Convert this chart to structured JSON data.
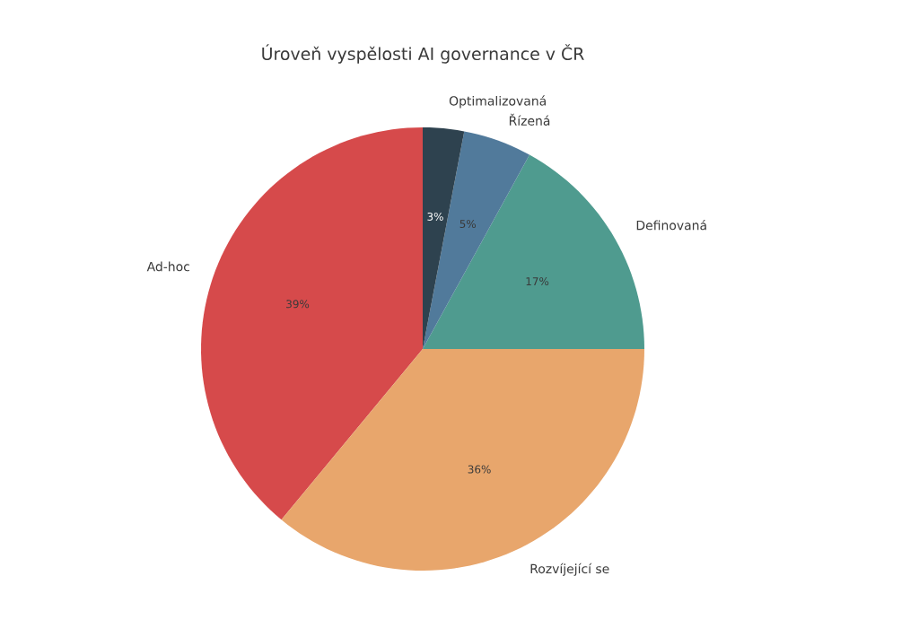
{
  "chart_data": {
    "type": "pie",
    "title": "Úroveň vyspělosti AI governance v ČR",
    "categories": [
      "Ad-hoc",
      "Rozvíjející se",
      "Definovaná",
      "Řízená",
      "Optimalizovaná"
    ],
    "values": [
      39,
      36,
      17,
      5,
      3
    ],
    "value_labels": [
      "39%",
      "36%",
      "17%",
      "5%",
      "3%"
    ],
    "colors": [
      "#d64a4b",
      "#e8a66c",
      "#4f9b8f",
      "#517a9b",
      "#2e424f"
    ]
  }
}
